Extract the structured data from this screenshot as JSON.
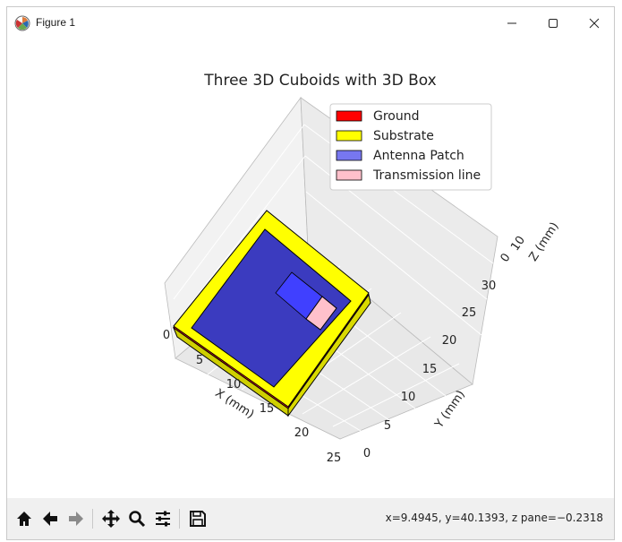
{
  "window": {
    "title": "Figure 1",
    "minimize_symbol": "–",
    "maximize_symbol": "☐",
    "close_symbol": "✕"
  },
  "chart_data": {
    "type": "3d-bar",
    "title": "Three 3D Cuboids with 3D Box",
    "xlabel": "X (mm)",
    "ylabel": "Y (mm)",
    "zlabel": "Z (mm)",
    "x_ticks": [
      "0",
      "5",
      "10",
      "15",
      "20",
      "25"
    ],
    "y_ticks": [
      "0",
      "5",
      "10",
      "15",
      "20",
      "25",
      "30"
    ],
    "z_ticks": [
      "0",
      "10"
    ],
    "legend": [
      {
        "label": "Ground",
        "color": "#ff0000"
      },
      {
        "label": "Substrate",
        "color": "#ffff00"
      },
      {
        "label": "Antenna Patch",
        "color": "#7777f0"
      },
      {
        "label": "Transmission line",
        "color": "#ffc0cb"
      }
    ],
    "legend_placement": "upper-right",
    "grid": true
  },
  "toolbar": {
    "icons": [
      "home-icon",
      "back-icon",
      "forward-icon",
      "pan-icon",
      "zoom-icon",
      "configure-icon",
      "save-icon"
    ],
    "coords": "x=9.4945, y=40.1393, z pane=−0.2318"
  }
}
